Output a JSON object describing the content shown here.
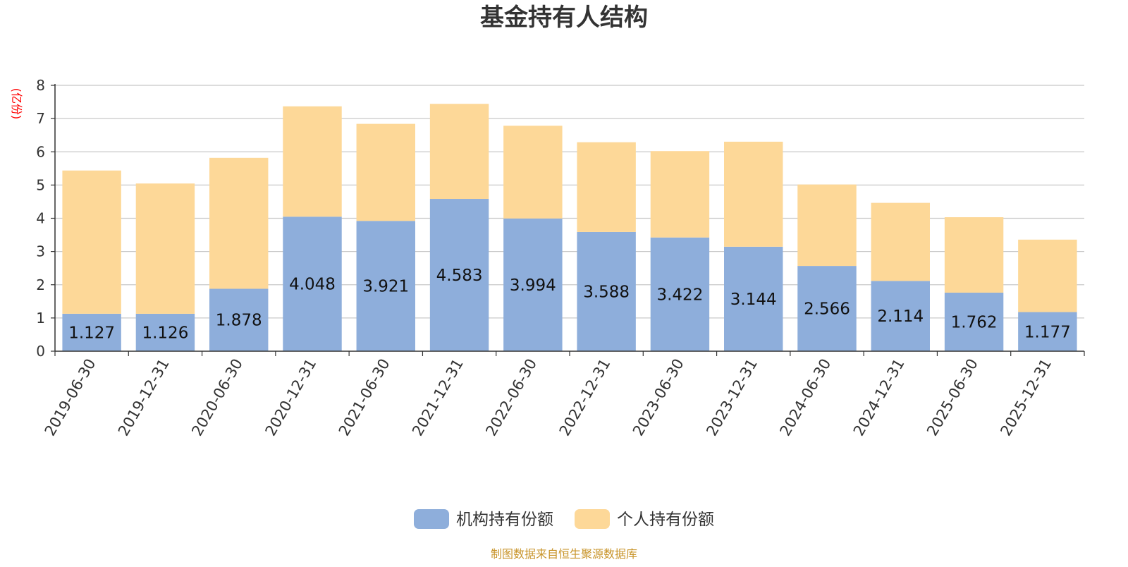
{
  "chart_data": {
    "type": "bar",
    "stacked": true,
    "title": "基金持有人结构",
    "ylabel": "(亿份)",
    "ylim": [
      0,
      8
    ],
    "yticks": [
      0,
      1,
      2,
      3,
      4,
      5,
      6,
      7,
      8
    ],
    "grid": true,
    "legend_position": "bottom-center",
    "categories": [
      "2019-06-30",
      "2019-12-31",
      "2020-06-30",
      "2020-12-31",
      "2021-06-30",
      "2021-12-31",
      "2022-06-30",
      "2022-12-31",
      "2023-06-30",
      "2023-12-31",
      "2024-06-30",
      "2024-12-31",
      "2025-06-30",
      "2025-12-31"
    ],
    "series": [
      {
        "name": "机构持有份额",
        "color": "#8eaedb",
        "values": [
          1.127,
          1.126,
          1.878,
          4.048,
          3.921,
          4.583,
          3.994,
          3.588,
          3.422,
          3.144,
          2.566,
          2.114,
          1.762,
          1.177
        ],
        "show_labels": true
      },
      {
        "name": "个人持有份额",
        "color": "#fdd898",
        "values": [
          4.31,
          3.92,
          3.94,
          3.32,
          2.92,
          2.86,
          2.79,
          2.7,
          2.6,
          3.16,
          2.45,
          2.35,
          2.27,
          2.18
        ],
        "show_labels": false
      }
    ],
    "source_note": "制图数据来自恒生聚源数据库"
  }
}
